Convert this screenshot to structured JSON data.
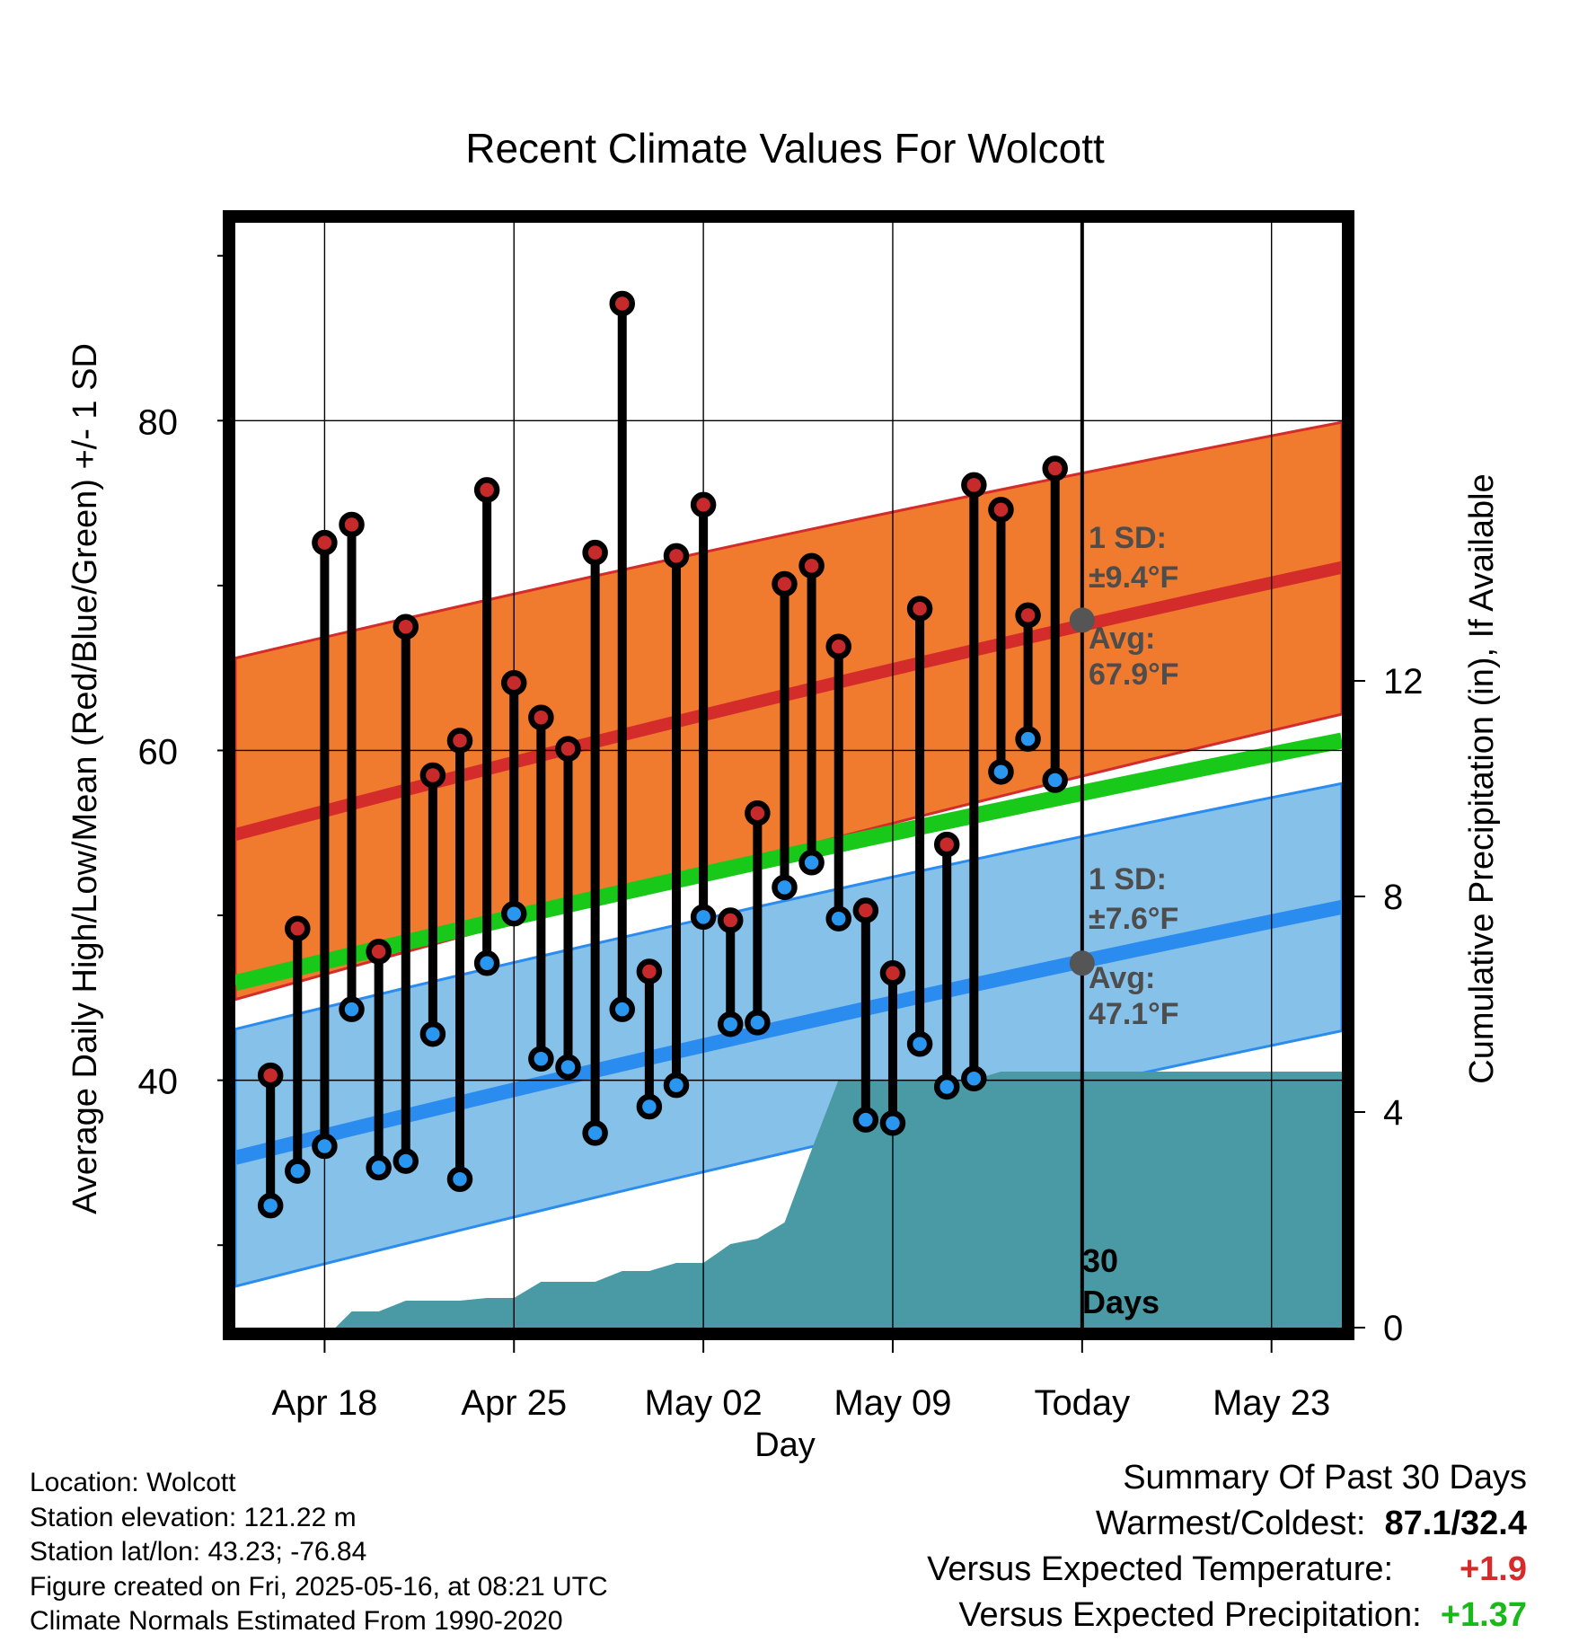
{
  "title": "Recent Climate Values For Wolcott",
  "left_axis_label": "Average Daily High/Low/Mean (Red/Blue/Green) +/- 1 SD",
  "right_axis_label": "Cumulative Precipitation (in), If Available",
  "x_axis_label": "Day",
  "colors": {
    "high_band": "#f07a2e",
    "high_avg": "#d42b2b",
    "low_band": "#85c1e9",
    "low_avg": "#2b8cf0",
    "mean": "#19c919",
    "precip": "#4a9aa5",
    "high_marker": "#c62a2a",
    "low_marker": "#2996f0",
    "positive_temp": "#d42b2b",
    "positive_precip": "#19b919"
  },
  "annotations": {
    "high_sd_line1": "1 SD:",
    "high_sd_line2": "±9.4°F",
    "high_avg_line1": "Avg:",
    "high_avg_line2": "67.9°F",
    "low_sd_line1": "1 SD:",
    "low_sd_line2": "±7.6°F",
    "low_avg_line1": "Avg:",
    "low_avg_line2": "47.1°F",
    "days_line1": "30",
    "days_line2": "Days"
  },
  "footer": {
    "location": "Location: Wolcott",
    "elevation": "Station elevation: 121.22 m",
    "latlon": "Station lat/lon: 43.23; -76.84",
    "created": "Figure created on Fri, 2025-05-16, at 08:21 UTC",
    "normals": "Climate Normals Estimated From 1990-2020"
  },
  "summary": {
    "heading": "Summary Of Past 30 Days",
    "warmest_label": "Warmest/Coldest:",
    "warmest_value": "87.1/32.4",
    "temp_label": "Versus Expected Temperature:",
    "temp_value": "+1.9",
    "precip_label": "Versus Expected Precipitation:",
    "precip_value": "+1.37"
  },
  "chart_data": {
    "type": "line",
    "title": "Recent Climate Values For Wolcott",
    "xlabel": "Day",
    "ylabel": "Average Daily High/Low/Mean (Red/Blue/Green) +/- 1 SD",
    "y2label": "Cumulative Precipitation (in), If Available",
    "x_tick_labels": [
      "Apr 18",
      "Apr 25",
      "May 02",
      "May 09",
      "Today",
      "May 23"
    ],
    "x_tick_days": [
      -28,
      -21,
      -14,
      -7,
      0,
      7
    ],
    "xlim": [
      -31.3,
      9.6
    ],
    "ylim": [
      25,
      92
    ],
    "y_ticks": [
      40,
      60,
      80
    ],
    "y2lim": [
      0,
      20.5
    ],
    "y2_ticks": [
      0,
      4,
      8,
      12
    ],
    "today_day": 0,
    "normals": {
      "x": [
        -31.3,
        9.6
      ],
      "high_avg": [
        54.9,
        71.1
      ],
      "high_upper": [
        65.6,
        79.9
      ],
      "high_lower": [
        44.9,
        62.2
      ],
      "mean": [
        45.9,
        60.6
      ],
      "low_avg": [
        35.3,
        50.5
      ],
      "low_upper": [
        43.1,
        58.0
      ],
      "low_lower": [
        27.5,
        43.0
      ]
    },
    "today_high_avg": 67.9,
    "today_low_avg": 47.1,
    "high_sd": 9.4,
    "low_sd": 7.6,
    "observations": {
      "day": [
        -30,
        -29,
        -28,
        -27,
        -26,
        -25,
        -24,
        -23,
        -22,
        -21,
        -20,
        -19,
        -18,
        -17,
        -16,
        -15,
        -14,
        -13,
        -12,
        -11,
        -10,
        -9,
        -8,
        -7,
        -6,
        -5,
        -4,
        -3,
        -2,
        -1
      ],
      "high": [
        40.3,
        49.2,
        72.6,
        73.7,
        47.8,
        67.5,
        58.5,
        60.6,
        75.8,
        64.1,
        62.0,
        60.1,
        72.0,
        87.1,
        46.6,
        71.8,
        74.9,
        49.7,
        56.2,
        70.1,
        71.2,
        66.3,
        50.3,
        46.5,
        68.6,
        54.3,
        76.1,
        74.6,
        68.2,
        77.1
      ],
      "low": [
        32.4,
        34.5,
        36.0,
        44.3,
        34.7,
        35.1,
        42.8,
        34.0,
        47.1,
        50.1,
        41.3,
        40.8,
        36.8,
        44.3,
        38.4,
        39.7,
        49.9,
        43.4,
        43.5,
        51.7,
        53.2,
        49.8,
        37.6,
        37.4,
        42.2,
        39.6,
        40.1,
        58.7,
        60.7,
        58.2
      ]
    },
    "precipitation": {
      "day": [
        -31.3,
        -30,
        -29,
        -28,
        -27.6,
        -27,
        -26,
        -25,
        -24,
        -23,
        -22,
        -21,
        -20,
        -19,
        -18,
        -17,
        -16,
        -15,
        -14,
        -13,
        -12,
        -11,
        -10,
        -9,
        -8,
        -7,
        -6,
        -5,
        -4,
        -3,
        -2,
        -1,
        0,
        9.6
      ],
      "cumulative": [
        0,
        0,
        0,
        0,
        0,
        0.3,
        0.3,
        0.5,
        0.5,
        0.5,
        0.55,
        0.55,
        0.85,
        0.85,
        0.85,
        1.05,
        1.05,
        1.2,
        1.2,
        1.55,
        1.65,
        1.95,
        3.3,
        4.6,
        4.6,
        4.6,
        4.6,
        4.6,
        4.6,
        4.75,
        4.75,
        4.75,
        4.75,
        4.75
      ]
    }
  }
}
